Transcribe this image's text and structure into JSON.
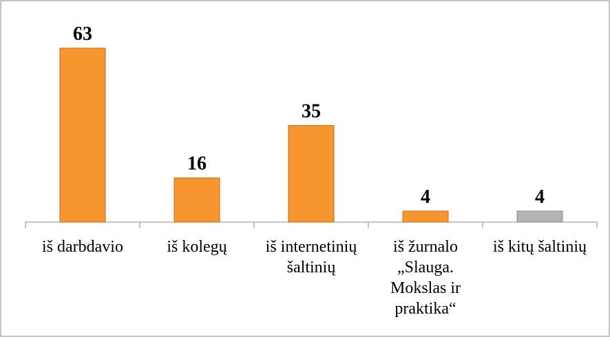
{
  "chart_data": {
    "type": "bar",
    "categories": [
      "iš darbdavio",
      "iš kolegų",
      "iš internetinių šaltinių",
      "iš žurnalo „Slauga. Mokslas ir praktika“",
      "iš kitų šaltinių"
    ],
    "values": [
      63,
      16,
      35,
      4,
      4
    ],
    "colors": [
      "#f7962f",
      "#f7962f",
      "#f7962f",
      "#f7962f",
      "#b4b4b4"
    ]
  }
}
